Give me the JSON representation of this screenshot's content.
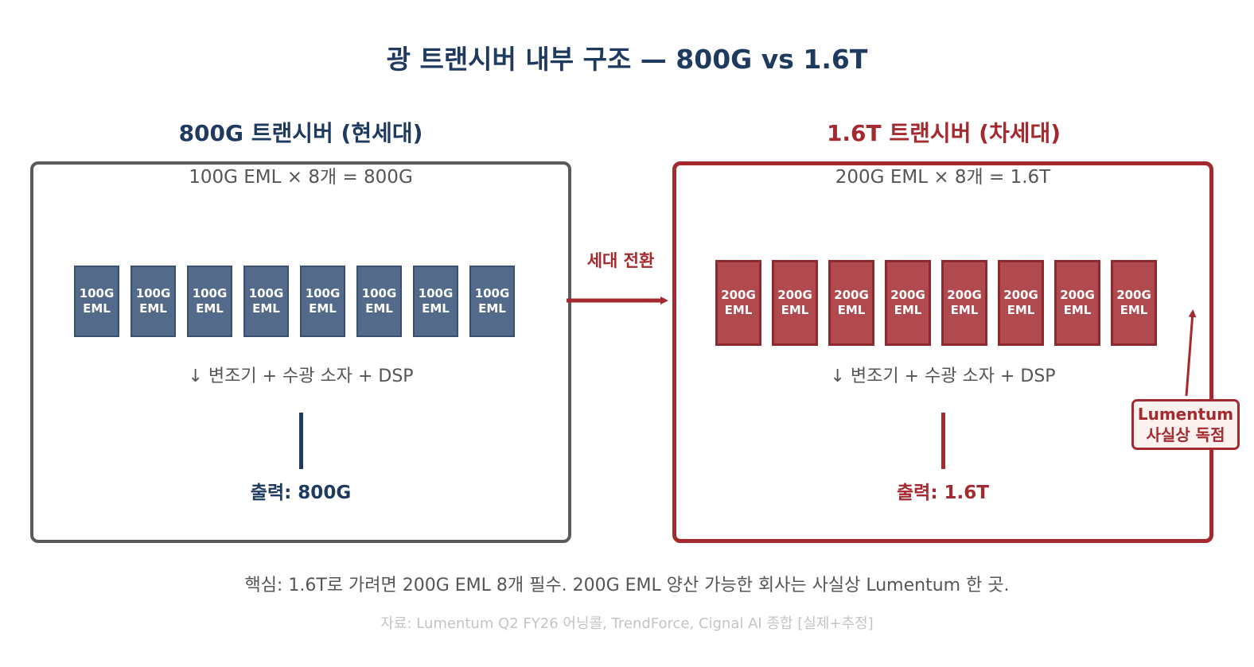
{
  "title": "광 트랜시버 내부 구조 — 800G vs 1.6T",
  "left_panel": {
    "heading": "800G 트랜시버 (현세대)",
    "formula": "100G EML × 8개 = 800G",
    "chip_label_line1": "100G",
    "chip_label_line2": "EML",
    "chip_count": 8,
    "components": "↓ 변조기 + 수광 소자 + DSP",
    "output": "출력: 800G",
    "color": "#1f3a5f"
  },
  "right_panel": {
    "heading": "1.6T 트랜시버 (차세대)",
    "formula": "200G EML × 8개 = 1.6T",
    "chip_label_line1": "200G",
    "chip_label_line2": "EML",
    "chip_count": 8,
    "components": "↓ 변조기 + 수광 소자 + DSP",
    "output": "출력: 1.6T",
    "color": "#a52a2f"
  },
  "transition": {
    "label": "세대 전환"
  },
  "callout": {
    "line1": "Lumentum",
    "line2": "사실상 독점"
  },
  "note": "핵심: 1.6T로 가려면 200G EML 8개 필수. 200G EML 양산 가능한 회사는 사실상 Lumentum 한 곳.",
  "source": "자료: Lumentum Q2 FY26 어닝콜, TrendForce, Cignal AI 종합 [실제+추정]"
}
